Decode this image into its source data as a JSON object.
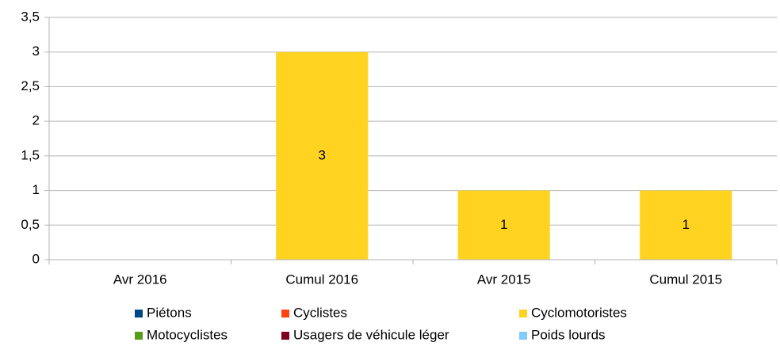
{
  "chart_data": {
    "type": "bar",
    "stacked": true,
    "categories": [
      "Avr 2016",
      "Cumul 2016",
      "Avr 2015",
      "Cumul 2015"
    ],
    "series": [
      {
        "name": "Piétons",
        "color": "#004586",
        "values": [
          null,
          null,
          null,
          null
        ]
      },
      {
        "name": "Cyclistes",
        "color": "#ff420e",
        "values": [
          null,
          null,
          null,
          null
        ]
      },
      {
        "name": "Cyclomotoristes",
        "color": "#ffd320",
        "values": [
          null,
          3,
          1,
          1
        ]
      },
      {
        "name": "Motocyclistes",
        "color": "#579d1c",
        "values": [
          null,
          null,
          null,
          null
        ]
      },
      {
        "name": "Usagers de véhicule léger",
        "color": "#7e0021",
        "values": [
          null,
          null,
          null,
          null
        ]
      },
      {
        "name": "Poids lourds",
        "color": "#83caff",
        "values": [
          null,
          null,
          null,
          null
        ]
      }
    ],
    "ylim": [
      0,
      3.5
    ],
    "yticks": [
      0,
      {
        "value": 0.5,
        "label": "0,5"
      },
      1,
      {
        "value": 1.5,
        "label": "1,5"
      },
      2,
      {
        "value": 2.5,
        "label": "2,5"
      },
      3,
      {
        "value": 3.5,
        "label": "3,5"
      }
    ],
    "grid": true,
    "legend": "bottom"
  }
}
